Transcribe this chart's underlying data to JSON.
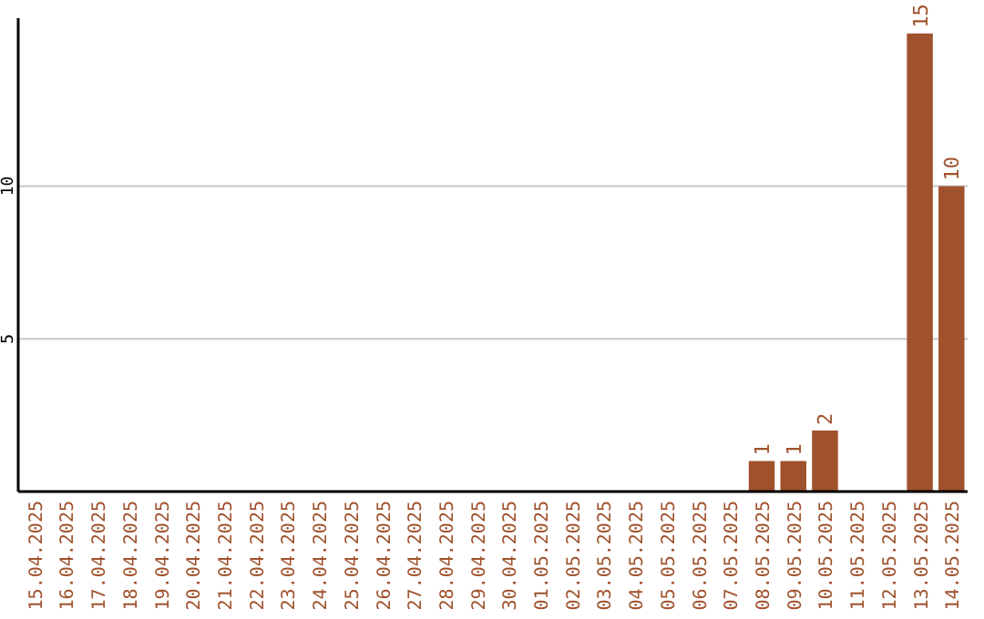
{
  "chart_data": {
    "type": "bar",
    "categories": [
      "15.04.2025",
      "16.04.2025",
      "17.04.2025",
      "18.04.2025",
      "19.04.2025",
      "20.04.2025",
      "21.04.2025",
      "22.04.2025",
      "23.04.2025",
      "24.04.2025",
      "25.04.2025",
      "26.04.2025",
      "27.04.2025",
      "28.04.2025",
      "29.04.2025",
      "30.04.2025",
      "01.05.2025",
      "02.05.2025",
      "03.05.2025",
      "04.05.2025",
      "05.05.2025",
      "06.05.2025",
      "07.05.2025",
      "08.05.2025",
      "09.05.2025",
      "10.05.2025",
      "11.05.2025",
      "12.05.2025",
      "13.05.2025",
      "14.05.2025"
    ],
    "values": [
      0,
      0,
      0,
      0,
      0,
      0,
      0,
      0,
      0,
      0,
      0,
      0,
      0,
      0,
      0,
      0,
      0,
      0,
      0,
      0,
      0,
      0,
      0,
      1,
      1,
      2,
      0,
      0,
      15,
      10
    ],
    "value_labels": [
      null,
      null,
      null,
      null,
      null,
      null,
      null,
      null,
      null,
      null,
      null,
      null,
      null,
      null,
      null,
      null,
      null,
      null,
      null,
      null,
      null,
      null,
      null,
      "1",
      "1",
      "2",
      null,
      null,
      "15",
      "10"
    ],
    "color": "#a0522d",
    "ylim": [
      0,
      15.5
    ],
    "yticks": [
      5,
      10
    ],
    "grid": "y"
  }
}
